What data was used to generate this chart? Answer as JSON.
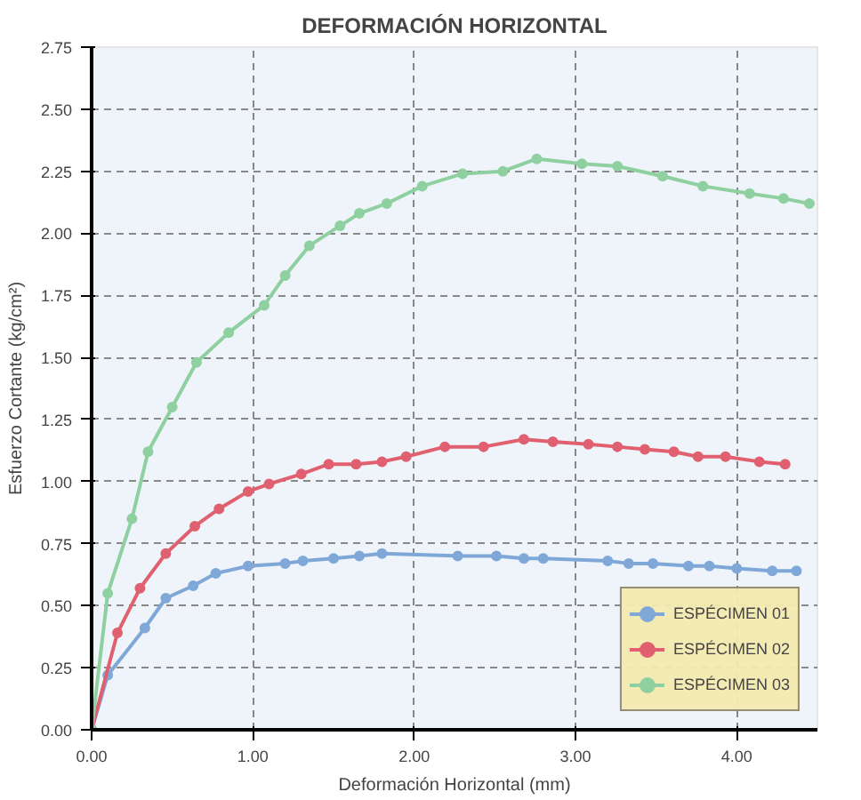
{
  "chart_data": {
    "type": "line",
    "title": "DEFORMACIÓN HORIZONTAL",
    "xlabel": "Deformación Horizontal (mm)",
    "ylabel": "Esfuerzo Cortante (kg/cm²)",
    "xlim": [
      0,
      4.5
    ],
    "ylim": [
      0,
      2.75
    ],
    "xticks": [
      {
        "value": 0,
        "label": "0.00"
      },
      {
        "value": 1,
        "label": "1.00"
      },
      {
        "value": 2,
        "label": "2.00"
      },
      {
        "value": 3,
        "label": "3.00"
      },
      {
        "value": 4,
        "label": "4.00"
      }
    ],
    "yticks": [
      {
        "value": 0,
        "label": "0.00"
      },
      {
        "value": 0.25,
        "label": "0.25"
      },
      {
        "value": 0.5,
        "label": "0.50"
      },
      {
        "value": 0.75,
        "label": "0.75"
      },
      {
        "value": 1,
        "label": "1.00"
      },
      {
        "value": 1.25,
        "label": "1.25"
      },
      {
        "value": 1.5,
        "label": "1.50"
      },
      {
        "value": 1.75,
        "label": "1.75"
      },
      {
        "value": 2,
        "label": "2.00"
      },
      {
        "value": 2.25,
        "label": "2.25"
      },
      {
        "value": 2.5,
        "label": "2.50"
      },
      {
        "value": 2.75,
        "label": "2.75"
      }
    ],
    "grid": true,
    "legend": "bottom right",
    "marker": "circle",
    "line_style": "solid",
    "series": [
      {
        "name": "ESPÉCIMEN 01",
        "color": "#7fa8d8",
        "x": [
          0,
          0.1,
          0.33,
          0.46,
          0.63,
          0.77,
          0.97,
          1.2,
          1.31,
          1.5,
          1.66,
          1.8,
          2.27,
          2.51,
          2.68,
          2.8,
          3.2,
          3.33,
          3.48,
          3.7,
          3.83,
          4.0,
          4.22,
          4.37
        ],
        "values": [
          0,
          0.22,
          0.41,
          0.53,
          0.58,
          0.63,
          0.66,
          0.67,
          0.68,
          0.69,
          0.7,
          0.71,
          0.7,
          0.7,
          0.69,
          0.69,
          0.68,
          0.67,
          0.67,
          0.66,
          0.66,
          0.65,
          0.64,
          0.64
        ]
      },
      {
        "name": "ESPÉCIMEN 02",
        "color": "#e06070",
        "x": [
          0,
          0.16,
          0.3,
          0.46,
          0.64,
          0.79,
          0.97,
          1.1,
          1.3,
          1.47,
          1.64,
          1.8,
          1.95,
          2.19,
          2.43,
          2.68,
          2.86,
          3.08,
          3.26,
          3.43,
          3.61,
          3.76,
          3.93,
          4.14,
          4.3
        ],
        "values": [
          0,
          0.39,
          0.57,
          0.71,
          0.82,
          0.89,
          0.96,
          0.99,
          1.03,
          1.07,
          1.07,
          1.08,
          1.1,
          1.14,
          1.14,
          1.17,
          1.16,
          1.15,
          1.14,
          1.13,
          1.12,
          1.1,
          1.1,
          1.08,
          1.07
        ]
      },
      {
        "name": "ESPÉCIMEN 03",
        "color": "#8fd0a0",
        "x": [
          0,
          0.1,
          0.25,
          0.35,
          0.5,
          0.65,
          0.85,
          1.07,
          1.2,
          1.35,
          1.54,
          1.66,
          1.83,
          2.05,
          2.3,
          2.55,
          2.76,
          3.04,
          3.26,
          3.54,
          3.79,
          4.08,
          4.29,
          4.45
        ],
        "values": [
          0,
          0.55,
          0.85,
          1.12,
          1.3,
          1.48,
          1.6,
          1.71,
          1.83,
          1.95,
          2.03,
          2.08,
          2.12,
          2.19,
          2.24,
          2.25,
          2.3,
          2.28,
          2.27,
          2.23,
          2.19,
          2.16,
          2.14,
          2.12
        ]
      }
    ]
  }
}
